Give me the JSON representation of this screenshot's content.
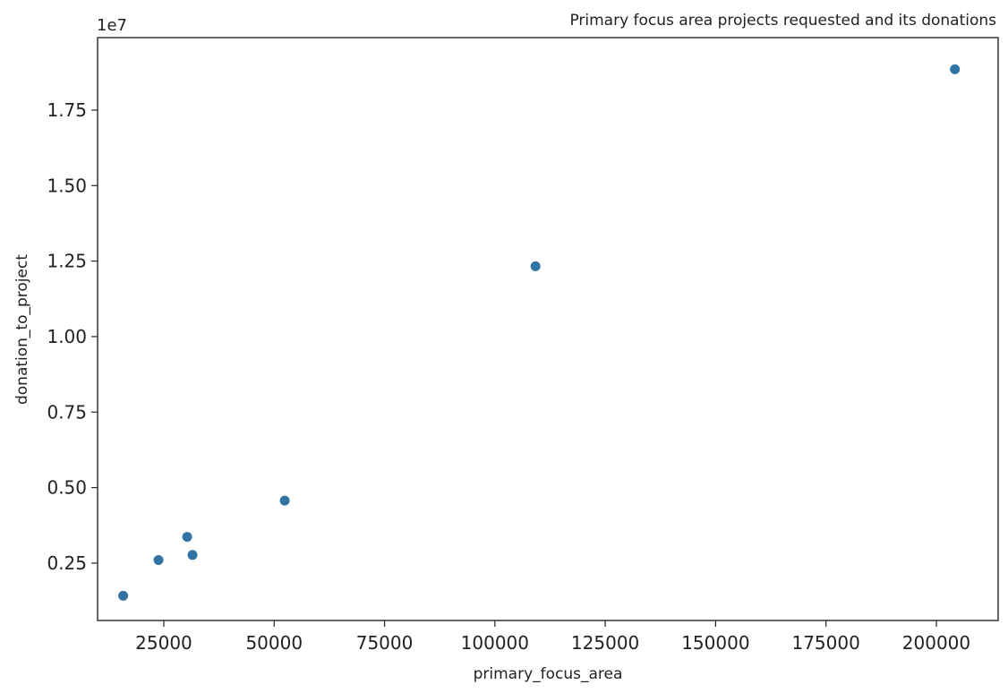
{
  "chart_data": {
    "type": "scatter",
    "title": "Primary focus area projects requested and its donations",
    "xlabel": "primary_focus_area",
    "ylabel": "donation_to_project",
    "y_offset_label": "1e7",
    "xlim": [
      10000,
      214000
    ],
    "ylim": [
      0.6,
      19.9
    ],
    "grid": false,
    "marker_color": "#3274a1",
    "x_ticks": [
      {
        "value": 25000,
        "label": "25000"
      },
      {
        "value": 50000,
        "label": "50000"
      },
      {
        "value": 75000,
        "label": "75000"
      },
      {
        "value": 100000,
        "label": "100000"
      },
      {
        "value": 125000,
        "label": "125000"
      },
      {
        "value": 150000,
        "label": "150000"
      },
      {
        "value": 175000,
        "label": "175000"
      },
      {
        "value": 200000,
        "label": "200000"
      }
    ],
    "y_ticks": [
      {
        "value": 2.5,
        "label": "0.25"
      },
      {
        "value": 5.0,
        "label": "0.50"
      },
      {
        "value": 7.5,
        "label": "0.75"
      },
      {
        "value": 10.0,
        "label": "1.00"
      },
      {
        "value": 12.5,
        "label": "1.25"
      },
      {
        "value": 15.0,
        "label": "1.50"
      },
      {
        "value": 17.5,
        "label": "1.75"
      }
    ],
    "points": [
      {
        "x": 15800,
        "y": 1.42
      },
      {
        "x": 23800,
        "y": 2.6
      },
      {
        "x": 30300,
        "y": 3.37
      },
      {
        "x": 31500,
        "y": 2.77
      },
      {
        "x": 52400,
        "y": 4.57
      },
      {
        "x": 109200,
        "y": 12.33
      },
      {
        "x": 204200,
        "y": 18.85
      }
    ]
  }
}
